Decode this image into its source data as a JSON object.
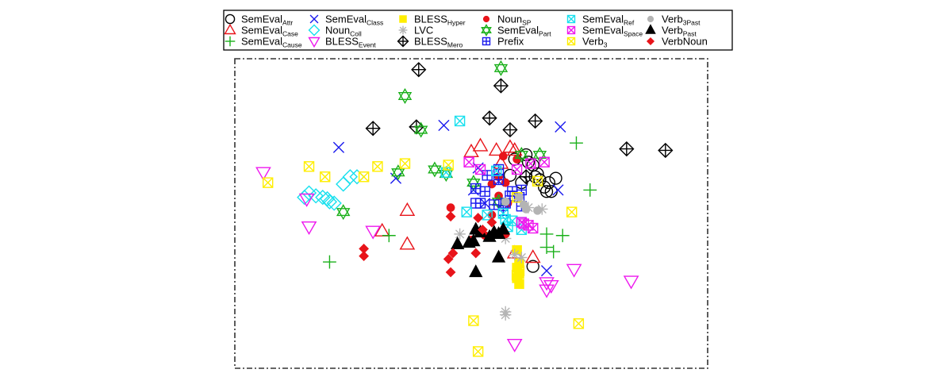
{
  "chart_data": {
    "type": "scatter",
    "title": "",
    "xlabel": "",
    "ylabel": "",
    "grid": false,
    "axes_visible": false,
    "xlim": [
      0,
      100
    ],
    "ylim": [
      0,
      100
    ],
    "frame_style": "dash-dot",
    "legend_position": "top",
    "legend_columns": 6,
    "series": [
      {
        "name": "SemEval",
        "sub": "Attr",
        "marker": "circle",
        "color": "#000000",
        "points": [
          [
            59.5,
            68.5
          ],
          [
            62.0,
            70.0
          ],
          [
            62.5,
            67.5
          ],
          [
            63.5,
            66.5
          ],
          [
            64.0,
            62.5
          ],
          [
            64.5,
            63.5
          ],
          [
            65.0,
            61.5
          ],
          [
            66.0,
            59.0
          ],
          [
            66.5,
            57.5
          ],
          [
            67.0,
            60.5
          ],
          [
            67.5,
            57.5
          ],
          [
            68.5,
            62.0
          ],
          [
            58.5,
            63.0
          ],
          [
            61.0,
            60.5
          ],
          [
            63.5,
            32.0
          ]
        ]
      },
      {
        "name": "SemEval",
        "sub": "Case",
        "marker": "triangle-up",
        "color": "#e8141a",
        "points": [
          [
            50.0,
            71.0
          ],
          [
            52.0,
            73.0
          ],
          [
            55.5,
            71.5
          ],
          [
            56.5,
            67.0
          ],
          [
            58.5,
            72.5
          ],
          [
            59.5,
            71.5
          ],
          [
            36.0,
            51.0
          ],
          [
            30.5,
            44.0
          ],
          [
            36.0,
            39.5
          ],
          [
            59.5,
            36.5
          ],
          [
            63.5,
            35.0
          ]
        ]
      },
      {
        "name": "SemEval",
        "sub": "Cause",
        "marker": "plus",
        "color": "#1ab01a",
        "points": [
          [
            73.0,
            74.0
          ],
          [
            76.0,
            58.0
          ],
          [
            66.5,
            43.0
          ],
          [
            70.0,
            42.5
          ],
          [
            66.5,
            38.5
          ],
          [
            68.0,
            37.0
          ],
          [
            32.0,
            42.5
          ],
          [
            19.0,
            33.5
          ]
        ]
      },
      {
        "name": "SemEval",
        "sub": "Class",
        "marker": "x",
        "color": "#1a1aee",
        "points": [
          [
            44.0,
            80.0
          ],
          [
            69.5,
            79.5
          ],
          [
            21.0,
            72.5
          ],
          [
            51.5,
            65.5
          ],
          [
            33.5,
            62.0
          ],
          [
            56.0,
            61.0
          ],
          [
            69.0,
            58.0
          ],
          [
            50.5,
            58.0
          ],
          [
            53.0,
            53.5
          ],
          [
            66.5,
            30.5
          ]
        ]
      },
      {
        "name": "Noun",
        "sub": "Coll",
        "marker": "diamond",
        "color": "#18e0ee",
        "points": [
          [
            23.5,
            62.5
          ],
          [
            25.0,
            62.5
          ],
          [
            22.0,
            60.0
          ],
          [
            14.5,
            57.0
          ],
          [
            16.0,
            56.0
          ],
          [
            17.5,
            55.5
          ],
          [
            18.5,
            55.0
          ],
          [
            19.0,
            54.0
          ],
          [
            20.0,
            53.5
          ],
          [
            13.5,
            55.5
          ]
        ]
      },
      {
        "name": "BLESS",
        "sub": "Event",
        "marker": "triangle-down",
        "color": "#ee18ee",
        "points": [
          [
            4.5,
            64.0
          ],
          [
            14.0,
            55.0
          ],
          [
            14.5,
            45.5
          ],
          [
            28.5,
            44.0
          ],
          [
            72.5,
            31.0
          ],
          [
            85.0,
            27.0
          ],
          [
            66.5,
            26.5
          ],
          [
            67.5,
            25.5
          ],
          [
            66.5,
            24.0
          ],
          [
            59.5,
            5.5
          ]
        ]
      },
      {
        "name": "BLESS",
        "sub": "Hyper",
        "marker": "square",
        "color": "#ffee00",
        "points": [
          [
            60.0,
            37.5
          ],
          [
            60.5,
            33.0
          ],
          [
            60.0,
            31.5
          ],
          [
            60.5,
            29.5
          ],
          [
            60.0,
            28.0
          ],
          [
            60.5,
            26.0
          ]
        ]
      },
      {
        "name": "LVC",
        "sub": "",
        "marker": "asterisk",
        "color": "#b4b4b4",
        "points": [
          [
            47.5,
            43.0
          ],
          [
            51.0,
            43.5
          ],
          [
            59.5,
            36.0
          ],
          [
            61.0,
            35.0
          ],
          [
            57.5,
            41.5
          ],
          [
            57.5,
            16.5
          ],
          [
            57.5,
            15.5
          ],
          [
            62.5,
            52.0
          ],
          [
            65.5,
            51.5
          ]
        ]
      },
      {
        "name": "BLESS",
        "sub": "Mero",
        "marker": "crossed-diamond",
        "color": "#000000",
        "points": [
          [
            38.5,
            99.0
          ],
          [
            56.5,
            93.5
          ],
          [
            28.5,
            79.0
          ],
          [
            38.0,
            79.5
          ],
          [
            54.0,
            82.5
          ],
          [
            58.5,
            78.5
          ],
          [
            64.0,
            81.5
          ],
          [
            84.0,
            72.0
          ],
          [
            92.5,
            71.5
          ],
          [
            62.0,
            62.5
          ]
        ]
      },
      {
        "name": "Noun",
        "sub": "SP",
        "marker": "filled-circle",
        "color": "#e8141a",
        "points": [
          [
            57.0,
            69.5
          ],
          [
            60.0,
            68.5
          ],
          [
            56.0,
            62.5
          ],
          [
            57.5,
            60.5
          ],
          [
            54.5,
            60.0
          ],
          [
            56.0,
            56.0
          ],
          [
            58.0,
            53.5
          ],
          [
            45.5,
            52.0
          ],
          [
            54.5,
            49.5
          ],
          [
            53.0,
            42.5
          ],
          [
            57.5,
            43.0
          ],
          [
            50.0,
            41.0
          ]
        ]
      },
      {
        "name": "SemEval",
        "sub": "Part",
        "marker": "hexagram",
        "color": "#1ab01a",
        "points": [
          [
            56.5,
            99.5
          ],
          [
            35.5,
            90.0
          ],
          [
            39.0,
            78.5
          ],
          [
            61.0,
            70.0
          ],
          [
            65.0,
            70.0
          ],
          [
            34.0,
            64.0
          ],
          [
            42.0,
            65.0
          ],
          [
            44.5,
            63.5
          ],
          [
            50.5,
            60.5
          ],
          [
            22.0,
            50.5
          ],
          [
            56.0,
            54.0
          ]
        ]
      },
      {
        "name": "Prefix",
        "sub": "",
        "marker": "square-plus",
        "color": "#1a1aee",
        "points": [
          [
            56.0,
            65.0
          ],
          [
            53.5,
            63.0
          ],
          [
            56.0,
            61.5
          ],
          [
            51.0,
            58.5
          ],
          [
            53.0,
            57.5
          ],
          [
            59.0,
            57.5
          ],
          [
            61.0,
            58.0
          ],
          [
            58.5,
            56.0
          ],
          [
            60.5,
            55.5
          ],
          [
            51.0,
            53.5
          ],
          [
            52.0,
            53.5
          ],
          [
            55.0,
            53.0
          ],
          [
            57.5,
            53.5
          ],
          [
            61.0,
            52.5
          ],
          [
            57.0,
            51.0
          ]
        ]
      },
      {
        "name": "SemEval",
        "sub": "Ref",
        "marker": "square-x",
        "color": "#18e0ee",
        "points": [
          [
            47.5,
            81.5
          ],
          [
            44.5,
            64.0
          ],
          [
            55.5,
            64.5
          ],
          [
            53.5,
            49.5
          ],
          [
            57.5,
            48.0
          ],
          [
            59.0,
            47.5
          ],
          [
            61.0,
            47.0
          ],
          [
            58.0,
            45.5
          ],
          [
            61.0,
            44.5
          ],
          [
            49.0,
            50.5
          ],
          [
            57.0,
            50.0
          ]
        ]
      },
      {
        "name": "SemEval",
        "sub": "Space",
        "marker": "square-x",
        "color": "#ee18ee",
        "points": [
          [
            49.5,
            67.5
          ],
          [
            52.0,
            65.0
          ],
          [
            63.0,
            67.0
          ],
          [
            60.0,
            65.0
          ],
          [
            66.0,
            67.5
          ],
          [
            61.0,
            47.0
          ],
          [
            61.5,
            46.5
          ],
          [
            62.5,
            46.0
          ],
          [
            63.5,
            45.0
          ]
        ]
      },
      {
        "name": "Verb",
        "sub": "3",
        "marker": "square-x",
        "color": "#ffee00",
        "points": [
          [
            14.5,
            66.0
          ],
          [
            5.5,
            60.5
          ],
          [
            18.0,
            62.5
          ],
          [
            26.5,
            62.5
          ],
          [
            29.5,
            66.0
          ],
          [
            35.5,
            67.0
          ],
          [
            45.0,
            66.5
          ],
          [
            64.5,
            61.0
          ],
          [
            60.0,
            55.5
          ],
          [
            72.0,
            50.5
          ],
          [
            60.5,
            30.5
          ],
          [
            60.0,
            29.0
          ],
          [
            50.5,
            13.5
          ],
          [
            73.5,
            12.5
          ],
          [
            51.5,
            3.0
          ]
        ]
      },
      {
        "name": "Verb",
        "sub": "3Past",
        "marker": "filled-circle",
        "color": "#b4b4b4",
        "points": [
          [
            60.5,
            55.5
          ],
          [
            61.5,
            53.0
          ],
          [
            62.0,
            51.5
          ],
          [
            64.5,
            51.0
          ],
          [
            57.5,
            54.0
          ]
        ]
      },
      {
        "name": "Verb",
        "sub": "Past",
        "marker": "filled-triangle",
        "color": "#000000",
        "points": [
          [
            47.0,
            39.5
          ],
          [
            49.5,
            40.0
          ],
          [
            50.5,
            40.5
          ],
          [
            51.0,
            44.5
          ],
          [
            52.0,
            43.5
          ],
          [
            54.0,
            42.0
          ],
          [
            55.0,
            43.5
          ],
          [
            56.0,
            43.0
          ],
          [
            57.0,
            44.5
          ],
          [
            56.0,
            35.0
          ],
          [
            51.0,
            30.0
          ]
        ]
      },
      {
        "name": "VerbNoun",
        "sub": "",
        "marker": "filled-diamond",
        "color": "#e8141a",
        "points": [
          [
            45.5,
            49.0
          ],
          [
            51.5,
            48.5
          ],
          [
            54.5,
            47.0
          ],
          [
            52.5,
            44.5
          ],
          [
            46.0,
            36.5
          ],
          [
            51.0,
            36.5
          ],
          [
            26.5,
            38.0
          ],
          [
            26.5,
            35.5
          ],
          [
            45.0,
            34.5
          ],
          [
            45.5,
            30.0
          ]
        ]
      }
    ]
  }
}
